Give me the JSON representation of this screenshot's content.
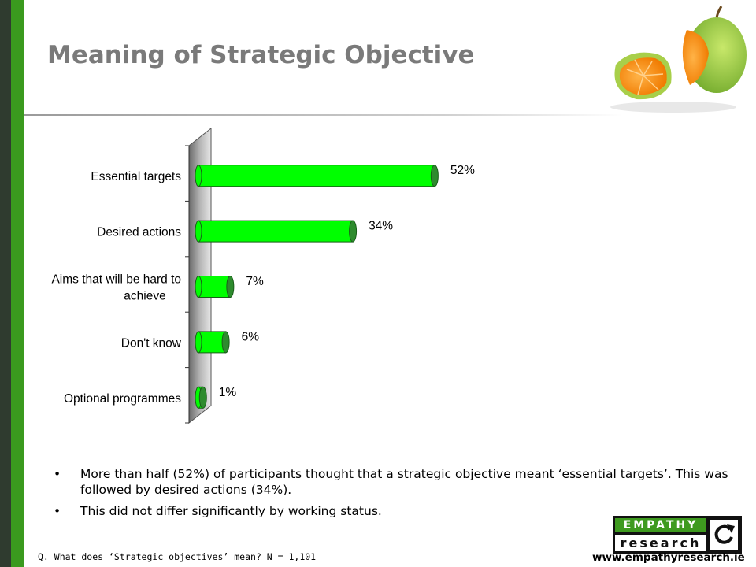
{
  "slide": {
    "title": "Meaning of Strategic Objective"
  },
  "chart_data": {
    "type": "bar",
    "orientation": "horizontal",
    "categories": [
      [
        "Essential targets"
      ],
      [
        "Desired actions"
      ],
      [
        "Aims that will be hard to",
        "achieve"
      ],
      [
        "Don't know"
      ],
      [
        "Optional programmes"
      ]
    ],
    "values": [
      52,
      34,
      7,
      6,
      1
    ],
    "value_labels": [
      "52%",
      "34%",
      "7%",
      "6%",
      "1%"
    ],
    "xlim": [
      0,
      60
    ],
    "bar_color": "#00ff00",
    "bar_edge_color": "#1a5e1a",
    "title": "",
    "xlabel": "",
    "ylabel": ""
  },
  "bullets": [
    "More than half (52%) of participants thought that a strategic objective meant ‘essential targets’. This was followed by desired actions (34%).",
    "This did not differ significantly by working status."
  ],
  "bullet_glyph": "•",
  "footnote": "Q. What does ‘Strategic objectives’ mean? N = 1,101",
  "logo": {
    "top_text": "EMPATHY",
    "bottom_text": "research"
  },
  "website": "www.empathyresearch.ie",
  "colors": {
    "brand_green": "#3a9a1e",
    "title_gray": "#7a7a7a"
  }
}
